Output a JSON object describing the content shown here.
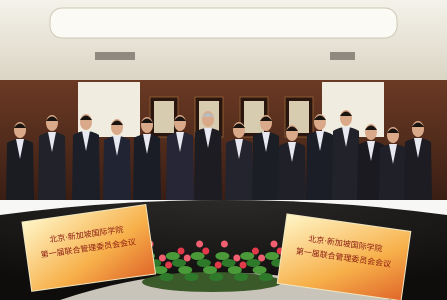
{
  "signs": {
    "left": {
      "line1": "北京·新加坡国际学院",
      "line2": "第一届联合管理委员会会议"
    },
    "right": {
      "line1": "北京·新加坡国际学院",
      "line2": "第一届联合管理委员会会议"
    }
  }
}
